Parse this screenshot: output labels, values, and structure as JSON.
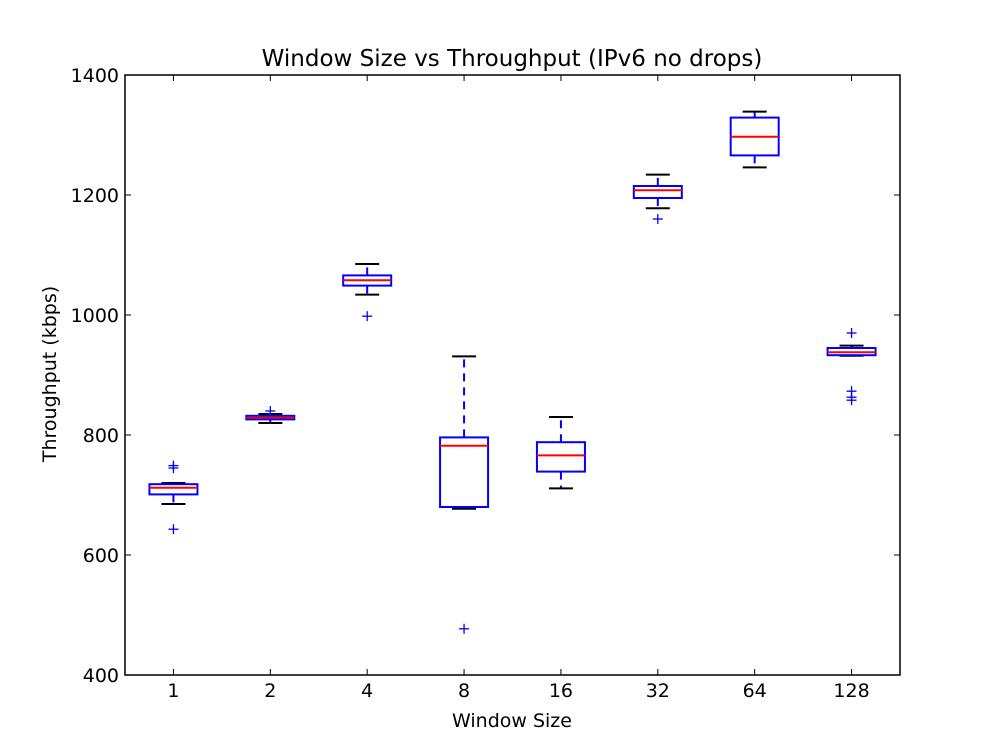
{
  "chart_data": {
    "type": "box",
    "title": "Window Size vs Throughput (IPv6 no drops)",
    "xlabel": "Window Size",
    "ylabel": "Throughput (kbps)",
    "ylim": [
      400,
      1400
    ],
    "yticks": [
      400,
      600,
      800,
      1000,
      1200,
      1400
    ],
    "grid": false,
    "categories": [
      "1",
      "2",
      "4",
      "8",
      "16",
      "32",
      "64",
      "128"
    ],
    "boxes": [
      {
        "category": "1",
        "whisker_low": 685,
        "q1": 701,
        "median": 712,
        "q3": 718,
        "whisker_high": 720,
        "outliers": [
          643,
          745,
          749
        ]
      },
      {
        "category": "2",
        "whisker_low": 820,
        "q1": 826,
        "median": 829,
        "q3": 832,
        "whisker_high": 835,
        "outliers": [
          840
        ]
      },
      {
        "category": "4",
        "whisker_low": 1034,
        "q1": 1049,
        "median": 1058,
        "q3": 1066,
        "whisker_high": 1085,
        "outliers": [
          998
        ]
      },
      {
        "category": "8",
        "whisker_low": 677,
        "q1": 680,
        "median": 782,
        "q3": 796,
        "whisker_high": 931,
        "outliers": [
          477
        ]
      },
      {
        "category": "16",
        "whisker_low": 711,
        "q1": 739,
        "median": 766,
        "q3": 788,
        "whisker_high": 830,
        "outliers": []
      },
      {
        "category": "32",
        "whisker_low": 1178,
        "q1": 1195,
        "median": 1208,
        "q3": 1215,
        "whisker_high": 1234,
        "outliers": [
          1160
        ]
      },
      {
        "category": "64",
        "whisker_low": 1246,
        "q1": 1266,
        "median": 1297,
        "q3": 1329,
        "whisker_high": 1339,
        "outliers": []
      },
      {
        "category": "128",
        "whisker_low": 932,
        "q1": 933,
        "median": 938,
        "q3": 945,
        "whisker_high": 949,
        "outliers": [
          858,
          863,
          873,
          970
        ]
      }
    ],
    "colors": {
      "box": "#0000ff",
      "median": "#ff0000",
      "whisker_cap": "#000000",
      "outlier": "#0000ff"
    }
  }
}
